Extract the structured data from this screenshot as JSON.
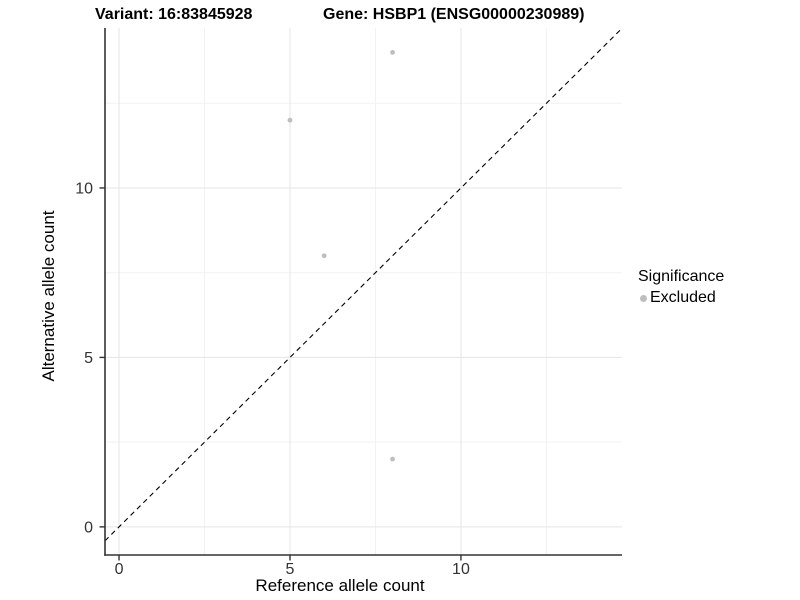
{
  "header": {
    "title_left": "Variant: 16:83845928",
    "title_right": "Gene: HSBP1 (ENSG00000230989)"
  },
  "chart_data": {
    "type": "scatter",
    "title": "Variant: 16:83845928    Gene: HSBP1 (ENSG00000230989)",
    "xlabel": "Reference allele count",
    "ylabel": "Alternative allele count",
    "xlim": [
      -0.41,
      14.71
    ],
    "ylim": [
      -0.83,
      14.72
    ],
    "x_major_ticks": [
      0,
      5,
      10
    ],
    "y_major_ticks": [
      0,
      5,
      10
    ],
    "x_minor_ticks": [
      2.5,
      7.5,
      12.5
    ],
    "y_minor_ticks": [
      2.5,
      7.5,
      12.5
    ],
    "grid": true,
    "series": [
      {
        "name": "Excluded",
        "color": "#bebebe",
        "points": [
          {
            "x": 8,
            "y": 14
          },
          {
            "x": 5,
            "y": 12
          },
          {
            "x": 6,
            "y": 8
          },
          {
            "x": 8,
            "y": 2
          }
        ]
      }
    ],
    "reference_line": {
      "kind": "identity",
      "style": "dashed",
      "color": "#000000"
    },
    "legend": {
      "title": "Significance",
      "position": "right",
      "entries": [
        {
          "label": "Excluded",
          "color": "#bebebe"
        }
      ]
    },
    "colors": {
      "axis_line": "#333333",
      "tick_label": "#333333",
      "grid_major": "#e5e5e5",
      "grid_minor": "#f2f2f2",
      "panel_background": "#ffffff"
    }
  }
}
